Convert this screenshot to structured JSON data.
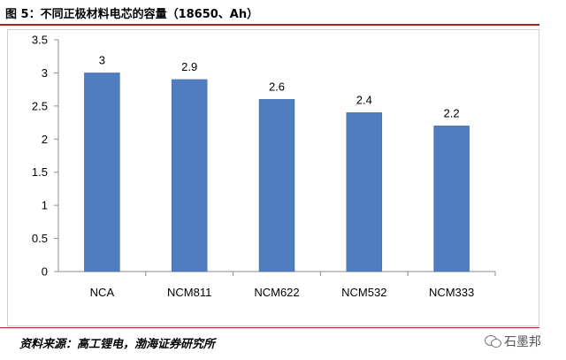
{
  "header": {
    "title": "图 5：不同正极材料电芯的容量（18650、Ah）"
  },
  "footer": {
    "source": "资料来源：高工锂电，渤海证券研究所",
    "watermark": "石墨邦"
  },
  "colors": {
    "bar": "#4f7dc0",
    "bar_edge": "#3f6aa8",
    "accent": "#b31e23",
    "axis": "#8c8c8c"
  },
  "icons": {
    "watermark_icon": "wechat-icon"
  },
  "chart_data": {
    "type": "bar",
    "title": "",
    "xlabel": "",
    "ylabel": "",
    "categories": [
      "NCA",
      "NCM811",
      "NCM622",
      "NCM532",
      "NCM333"
    ],
    "values": [
      3,
      2.9,
      2.6,
      2.4,
      2.2
    ],
    "data_labels": [
      "3",
      "2.9",
      "2.6",
      "2.4",
      "2.2"
    ],
    "ylim": [
      0,
      3.5
    ],
    "yticks": [
      "0",
      "0.5",
      "1",
      "1.5",
      "2",
      "2.5",
      "3",
      "3.5"
    ],
    "ytick_values": [
      0,
      0.5,
      1,
      1.5,
      2,
      2.5,
      3,
      3.5
    ],
    "grid": false,
    "legend": "none"
  }
}
